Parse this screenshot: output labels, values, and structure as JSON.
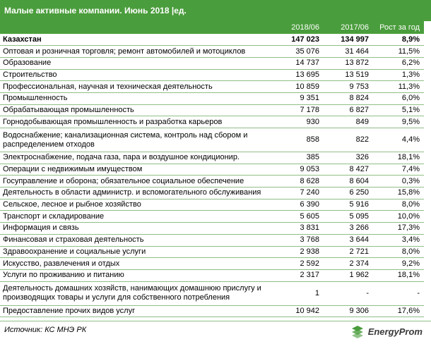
{
  "title": "Малые активные компании. Июнь 2018 |ед.",
  "headers": {
    "category": "",
    "col1": "2018/06",
    "col2": "2017/06",
    "col3": "Рост за год"
  },
  "rows": [
    {
      "label": "Казахстан",
      "v2018": "147 023",
      "v2017": "134 997",
      "growth": "8,9%"
    },
    {
      "label": "Оптовая и розничная торговля; ремонт автомобилей и мотоциклов",
      "v2018": "35 076",
      "v2017": "31 464",
      "growth": "11,5%"
    },
    {
      "label": "Образование",
      "v2018": "14 737",
      "v2017": "13 872",
      "growth": "6,2%"
    },
    {
      "label": "Строительство",
      "v2018": "13 695",
      "v2017": "13 519",
      "growth": "1,3%"
    },
    {
      "label": "Профессиональная, научная и техническая деятельность",
      "v2018": "10 859",
      "v2017": "9 753",
      "growth": "11,3%"
    },
    {
      "label": "Промышленность",
      "v2018": "9 351",
      "v2017": "8 824",
      "growth": "6,0%"
    },
    {
      "label": "Обрабатывающая промышленность",
      "v2018": "7 178",
      "v2017": "6 827",
      "growth": "5,1%"
    },
    {
      "label": "Горнодобывающая промышленность и разработка карьеров",
      "v2018": "930",
      "v2017": "849",
      "growth": "9,5%"
    },
    {
      "label": "Водоснабжение; канализационная система, контроль над сбором и распределением отходов",
      "v2018": "858",
      "v2017": "822",
      "growth": "4,4%"
    },
    {
      "label": "Электроснабжение, подача газа, пара и воздушное  кондиционир.",
      "v2018": "385",
      "v2017": "326",
      "growth": "18,1%"
    },
    {
      "label": "Операции с недвижимым имуществом",
      "v2018": "9 053",
      "v2017": "8 427",
      "growth": "7,4%"
    },
    {
      "label": "Госуправление и оборона; обязательное  социальное обеспечение",
      "v2018": "8 628",
      "v2017": "8 604",
      "growth": "0,3%"
    },
    {
      "label": "Деятельность в области администр. и вспомогательного обслуживания",
      "v2018": "7 240",
      "v2017": "6 250",
      "growth": "15,8%"
    },
    {
      "label": "Сельское, лесное и рыбное хозяйство",
      "v2018": "6 390",
      "v2017": "5 916",
      "growth": "8,0%"
    },
    {
      "label": "Транспорт и складирование",
      "v2018": "5 605",
      "v2017": "5 095",
      "growth": "10,0%"
    },
    {
      "label": "Информация и связь",
      "v2018": "3 831",
      "v2017": "3 266",
      "growth": "17,3%"
    },
    {
      "label": "Финансовая и страховая деятельность",
      "v2018": "3 768",
      "v2017": "3 644",
      "growth": "3,4%"
    },
    {
      "label": "Здравоохранение и социальные услуги",
      "v2018": "2 938",
      "v2017": "2 721",
      "growth": "8,0%"
    },
    {
      "label": "Искусство, развлечения и отдых",
      "v2018": "2 592",
      "v2017": "2 374",
      "growth": "9,2%"
    },
    {
      "label": "Услуги по проживанию и питанию",
      "v2018": "2 317",
      "v2017": "1 962",
      "growth": "18,1%"
    },
    {
      "label": "Деятельность домашних хозяйств, нанимающих домашнюю прислугу и производящих товары и услуги для собственного потребления",
      "v2018": "1",
      "v2017": "-",
      "growth": "-"
    },
    {
      "label": "Предоставление прочих видов услуг",
      "v2018": "10 942",
      "v2017": "9 306",
      "growth": "17,6%"
    }
  ],
  "footer": {
    "source": "Источник: КС МНЭ РК",
    "logo_text": "EnergyProm",
    "logo_icon": "energyprom-logo-icon"
  },
  "colors": {
    "header_bg": "#4a9d3c",
    "row_divider": "#8fbf85"
  }
}
